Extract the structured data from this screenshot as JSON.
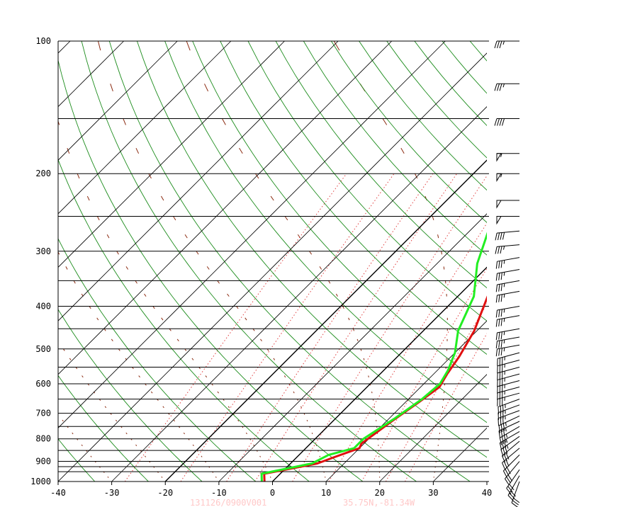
{
  "chart_data": {
    "type": "line",
    "title": "",
    "xlabel": "",
    "ylabel": "",
    "x_ticks": [
      -40,
      -30,
      -20,
      -10,
      0,
      10,
      20,
      30,
      40
    ],
    "x_tick_labels": [
      "-40",
      "-30",
      "-20",
      "-10",
      "0",
      "10",
      "20",
      "30",
      "40"
    ],
    "y_ticks": [
      100,
      200,
      300,
      400,
      500,
      600,
      700,
      800,
      900,
      1000
    ],
    "y_tick_labels": [
      "100",
      "200",
      "300",
      "400",
      "500",
      "600",
      "700",
      "800",
      "900",
      "1000"
    ],
    "xlim": [
      -40,
      40
    ],
    "ylim": [
      1000,
      100
    ],
    "y_scale": "log",
    "skew": "skew-T",
    "grid": true,
    "footer": {
      "station_time": "131126/0900V001",
      "marker": "",
      "location": "35.75N,-81.34W"
    },
    "series": [
      {
        "color": "#e01010",
        "points": [
          [
            -1.5,
            1000
          ],
          [
            -3,
            960
          ],
          [
            5,
            910
          ],
          [
            7,
            880
          ],
          [
            10,
            840
          ],
          [
            9.5,
            820
          ],
          [
            11,
            730
          ],
          [
            12.5,
            660
          ],
          [
            13.5,
            610
          ],
          [
            12.5,
            570
          ],
          [
            11.5,
            520
          ],
          [
            9.5,
            455
          ],
          [
            5,
            370
          ],
          [
            1.5,
            320
          ],
          [
            -2,
            270
          ],
          [
            -5,
            230
          ],
          [
            -7,
            200
          ],
          [
            -3,
            180
          ],
          [
            3,
            150
          ],
          [
            6,
            130
          ],
          [
            14.5,
            100
          ]
        ]
      },
      {
        "color": "#22ee22",
        "points": [
          [
            -2,
            1000
          ],
          [
            -3.5,
            960
          ],
          [
            4,
            910
          ],
          [
            5.5,
            870
          ],
          [
            9,
            840
          ],
          [
            9,
            800
          ],
          [
            11,
            720
          ],
          [
            12.5,
            650
          ],
          [
            13,
            600
          ],
          [
            12,
            560
          ],
          [
            10,
            510
          ],
          [
            6.5,
            455
          ],
          [
            3,
            380
          ],
          [
            -2.5,
            320
          ],
          [
            -6.5,
            270
          ],
          [
            -9,
            230
          ],
          [
            -11,
            200
          ],
          [
            -8,
            180
          ],
          [
            -8,
            150
          ],
          [
            -6,
            130
          ],
          [
            0,
            100
          ]
        ]
      }
    ],
    "wind_barbs_knots": [
      {
        "p": 1000,
        "speed": 30,
        "dir": 200
      },
      {
        "p": 970,
        "speed": 30,
        "dir": 210
      },
      {
        "p": 940,
        "speed": 30,
        "dir": 215
      },
      {
        "p": 900,
        "speed": 30,
        "dir": 220
      },
      {
        "p": 870,
        "speed": 30,
        "dir": 225
      },
      {
        "p": 840,
        "speed": 30,
        "dir": 230
      },
      {
        "p": 810,
        "speed": 30,
        "dir": 230
      },
      {
        "p": 790,
        "speed": 35,
        "dir": 235
      },
      {
        "p": 770,
        "speed": 35,
        "dir": 240
      },
      {
        "p": 750,
        "speed": 35,
        "dir": 240
      },
      {
        "p": 730,
        "speed": 35,
        "dir": 245
      },
      {
        "p": 710,
        "speed": 35,
        "dir": 245
      },
      {
        "p": 690,
        "speed": 35,
        "dir": 250
      },
      {
        "p": 670,
        "speed": 35,
        "dir": 250
      },
      {
        "p": 650,
        "speed": 35,
        "dir": 250
      },
      {
        "p": 630,
        "speed": 35,
        "dir": 255
      },
      {
        "p": 610,
        "speed": 35,
        "dir": 255
      },
      {
        "p": 590,
        "speed": 35,
        "dir": 255
      },
      {
        "p": 570,
        "speed": 35,
        "dir": 255
      },
      {
        "p": 550,
        "speed": 35,
        "dir": 255
      },
      {
        "p": 530,
        "speed": 35,
        "dir": 255
      },
      {
        "p": 510,
        "speed": 35,
        "dir": 255
      },
      {
        "p": 490,
        "speed": 35,
        "dir": 260
      },
      {
        "p": 470,
        "speed": 35,
        "dir": 260
      },
      {
        "p": 450,
        "speed": 35,
        "dir": 260
      },
      {
        "p": 420,
        "speed": 35,
        "dir": 260
      },
      {
        "p": 400,
        "speed": 35,
        "dir": 260
      },
      {
        "p": 370,
        "speed": 35,
        "dir": 260
      },
      {
        "p": 350,
        "speed": 35,
        "dir": 260
      },
      {
        "p": 330,
        "speed": 35,
        "dir": 260
      },
      {
        "p": 310,
        "speed": 35,
        "dir": 260
      },
      {
        "p": 290,
        "speed": 35,
        "dir": 265
      },
      {
        "p": 270,
        "speed": 40,
        "dir": 265
      },
      {
        "p": 250,
        "speed": 50,
        "dir": 270
      },
      {
        "p": 230,
        "speed": 50,
        "dir": 270
      },
      {
        "p": 200,
        "speed": 55,
        "dir": 270
      },
      {
        "p": 180,
        "speed": 55,
        "dir": 270
      },
      {
        "p": 150,
        "speed": 40,
        "dir": 270
      },
      {
        "p": 125,
        "speed": 35,
        "dir": 270
      },
      {
        "p": 100,
        "speed": 35,
        "dir": 270
      }
    ],
    "colors": {
      "isobar": "#000000",
      "isotherm": "#000000",
      "dry_adiabat": "#1c8c1c",
      "mixing_ratio": "#e04040",
      "dashed_marks": "#8b2a10",
      "axis": "#000000"
    }
  }
}
